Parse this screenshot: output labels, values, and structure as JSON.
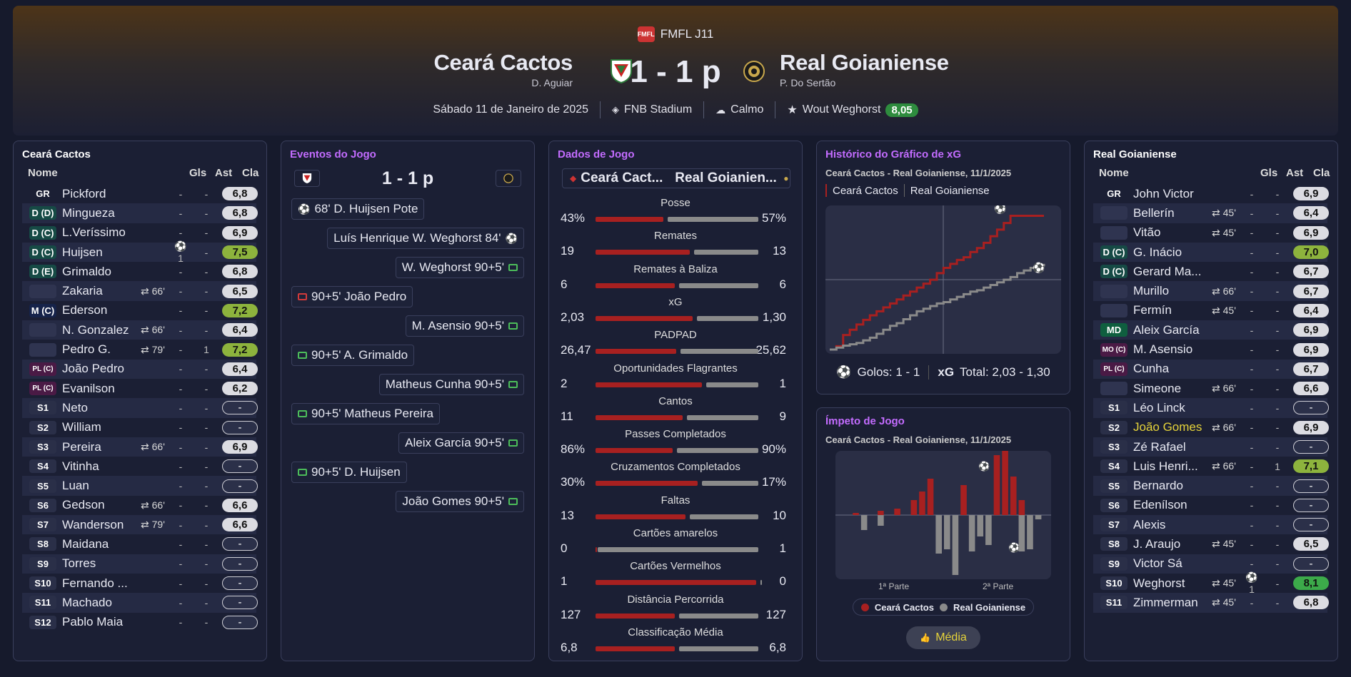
{
  "header": {
    "competition": "FMFL J11",
    "competition_logo": "FMFL",
    "home_team": "Ceará Cactos",
    "home_coach": "D. Aguiar",
    "away_team": "Real Goianiense",
    "away_coach": "P. Do Sertão",
    "score": "1 - 1 p",
    "date": "Sábado 11 de Janeiro de 2025",
    "stadium": "FNB Stadium",
    "weather": "Calmo",
    "star_player": "Wout Weghorst",
    "star_rating": "8,05"
  },
  "colors": {
    "home": "#a82020",
    "away": "#8a8a8a",
    "accent": "#c36cff",
    "green": "#2e8c3e"
  },
  "home_panel": {
    "title": "Ceará Cactos",
    "headers": {
      "name": "Nome",
      "gls": "Gls",
      "ast": "Ast",
      "cla": "Cla"
    },
    "players": [
      {
        "pos": "GR",
        "type": "gr",
        "name": "Pickford",
        "sub": "",
        "gls": "-",
        "ast": "-",
        "rating": "6,8",
        "rt": "w"
      },
      {
        "pos": "D (D)",
        "type": "d",
        "name": "Mingueza",
        "sub": "",
        "gls": "-",
        "ast": "-",
        "rating": "6,8",
        "rt": "w"
      },
      {
        "pos": "D (C)",
        "type": "d",
        "name": "L.Veríssimo",
        "sub": "",
        "gls": "-",
        "ast": "-",
        "rating": "6,9",
        "rt": "w"
      },
      {
        "pos": "D (C)",
        "type": "d",
        "name": "Huijsen",
        "sub": "",
        "gls": "⚽1",
        "ast": "-",
        "rating": "7,5",
        "rt": "lg"
      },
      {
        "pos": "D (E)",
        "type": "d",
        "name": "Grimaldo",
        "sub": "",
        "gls": "-",
        "ast": "-",
        "rating": "6,8",
        "rt": "w"
      },
      {
        "pos": "",
        "type": "blank",
        "name": "Zakaria",
        "sub": "⇄ 66'",
        "gls": "-",
        "ast": "-",
        "rating": "6,5",
        "rt": "w"
      },
      {
        "pos": "M (C)",
        "type": "m",
        "name": "Ederson",
        "sub": "",
        "gls": "-",
        "ast": "-",
        "rating": "7,2",
        "rt": "lg"
      },
      {
        "pos": "",
        "type": "blank",
        "name": "N. Gonzalez",
        "sub": "⇄ 66'",
        "gls": "-",
        "ast": "-",
        "rating": "6,4",
        "rt": "w"
      },
      {
        "pos": "",
        "type": "blank",
        "name": "Pedro G.",
        "sub": "⇄ 79'",
        "gls": "-",
        "ast": "1",
        "rating": "7,2",
        "rt": "lg"
      },
      {
        "pos": "PL (C)",
        "type": "pl",
        "name": "João Pedro",
        "sub": "",
        "gls": "-",
        "ast": "-",
        "rating": "6,4",
        "rt": "w"
      },
      {
        "pos": "PL (C)",
        "type": "pl",
        "name": "Evanilson",
        "sub": "",
        "gls": "-",
        "ast": "-",
        "rating": "6,2",
        "rt": "w"
      },
      {
        "pos": "S1",
        "type": "s",
        "name": "Neto",
        "sub": "",
        "gls": "-",
        "ast": "-",
        "rating": "-",
        "rt": "none"
      },
      {
        "pos": "S2",
        "type": "s",
        "name": "William",
        "sub": "",
        "gls": "-",
        "ast": "-",
        "rating": "-",
        "rt": "none"
      },
      {
        "pos": "S3",
        "type": "s",
        "name": "Pereira",
        "sub": "⇄ 66'",
        "gls": "-",
        "ast": "-",
        "rating": "6,9",
        "rt": "w"
      },
      {
        "pos": "S4",
        "type": "s",
        "name": "Vitinha",
        "sub": "",
        "gls": "-",
        "ast": "-",
        "rating": "-",
        "rt": "none"
      },
      {
        "pos": "S5",
        "type": "s",
        "name": "Luan",
        "sub": "",
        "gls": "-",
        "ast": "-",
        "rating": "-",
        "rt": "none"
      },
      {
        "pos": "S6",
        "type": "s",
        "name": "Gedson",
        "sub": "⇄ 66'",
        "gls": "-",
        "ast": "-",
        "rating": "6,6",
        "rt": "w"
      },
      {
        "pos": "S7",
        "type": "s",
        "name": "Wanderson",
        "sub": "⇄ 79'",
        "gls": "-",
        "ast": "-",
        "rating": "6,6",
        "rt": "w"
      },
      {
        "pos": "S8",
        "type": "s",
        "name": "Maidana",
        "sub": "",
        "gls": "-",
        "ast": "-",
        "rating": "-",
        "rt": "none"
      },
      {
        "pos": "S9",
        "type": "s",
        "name": "Torres",
        "sub": "",
        "gls": "-",
        "ast": "-",
        "rating": "-",
        "rt": "none"
      },
      {
        "pos": "S10",
        "type": "s",
        "name": "Fernando ...",
        "sub": "",
        "gls": "-",
        "ast": "-",
        "rating": "-",
        "rt": "none"
      },
      {
        "pos": "S11",
        "type": "s",
        "name": "Machado",
        "sub": "",
        "gls": "-",
        "ast": "-",
        "rating": "-",
        "rt": "none"
      },
      {
        "pos": "S12",
        "type": "s",
        "name": "Pablo Maia",
        "sub": "",
        "gls": "-",
        "ast": "-",
        "rating": "-",
        "rt": "none"
      }
    ]
  },
  "away_panel": {
    "title": "Real Goianiense",
    "headers": {
      "name": "Nome",
      "gls": "Gls",
      "ast": "Ast",
      "cla": "Cla"
    },
    "players": [
      {
        "pos": "GR",
        "type": "gr",
        "name": "John Victor",
        "sub": "",
        "gls": "-",
        "ast": "-",
        "rating": "6,9",
        "rt": "w"
      },
      {
        "pos": "",
        "type": "blank",
        "name": "Bellerín",
        "sub": "⇄ 45'",
        "gls": "-",
        "ast": "-",
        "rating": "6,4",
        "rt": "w"
      },
      {
        "pos": "",
        "type": "blank",
        "name": "Vitão",
        "sub": "⇄ 45'",
        "gls": "-",
        "ast": "-",
        "rating": "6,9",
        "rt": "w"
      },
      {
        "pos": "D (C)",
        "type": "d",
        "name": "G. Inácio",
        "sub": "",
        "gls": "-",
        "ast": "-",
        "rating": "7,0",
        "rt": "lg"
      },
      {
        "pos": "D (C)",
        "type": "d",
        "name": "Gerard Ma...",
        "sub": "",
        "gls": "-",
        "ast": "-",
        "rating": "6,7",
        "rt": "w"
      },
      {
        "pos": "",
        "type": "blank",
        "name": "Murillo",
        "sub": "⇄ 66'",
        "gls": "-",
        "ast": "-",
        "rating": "6,7",
        "rt": "w"
      },
      {
        "pos": "",
        "type": "blank",
        "name": "Fermín",
        "sub": "⇄ 45'",
        "gls": "-",
        "ast": "-",
        "rating": "6,4",
        "rt": "w"
      },
      {
        "pos": "MD",
        "type": "md",
        "name": "Aleix García",
        "sub": "",
        "gls": "-",
        "ast": "-",
        "rating": "6,9",
        "rt": "w"
      },
      {
        "pos": "MO (C)",
        "type": "pl",
        "name": "M. Asensio",
        "sub": "",
        "gls": "-",
        "ast": "-",
        "rating": "6,9",
        "rt": "w"
      },
      {
        "pos": "PL (C)",
        "type": "pl",
        "name": "Cunha",
        "sub": "",
        "gls": "-",
        "ast": "-",
        "rating": "6,7",
        "rt": "w"
      },
      {
        "pos": "",
        "type": "blank",
        "name": "Simeone",
        "sub": "⇄ 66'",
        "gls": "-",
        "ast": "-",
        "rating": "6,6",
        "rt": "w"
      },
      {
        "pos": "S1",
        "type": "s",
        "name": "Léo Linck",
        "sub": "",
        "gls": "-",
        "ast": "-",
        "rating": "-",
        "rt": "none"
      },
      {
        "pos": "S2",
        "type": "s",
        "name": "João Gomes",
        "sub": "⇄ 66'",
        "gls": "-",
        "ast": "-",
        "rating": "6,9",
        "rt": "w",
        "highlight": true
      },
      {
        "pos": "S3",
        "type": "s",
        "name": "Zé Rafael",
        "sub": "",
        "gls": "-",
        "ast": "-",
        "rating": "-",
        "rt": "none"
      },
      {
        "pos": "S4",
        "type": "s",
        "name": "Luis Henri...",
        "sub": "⇄ 66'",
        "gls": "-",
        "ast": "1",
        "rating": "7,1",
        "rt": "lg"
      },
      {
        "pos": "S5",
        "type": "s",
        "name": "Bernardo",
        "sub": "",
        "gls": "-",
        "ast": "-",
        "rating": "-",
        "rt": "none"
      },
      {
        "pos": "S6",
        "type": "s",
        "name": "Edenílson",
        "sub": "",
        "gls": "-",
        "ast": "-",
        "rating": "-",
        "rt": "none"
      },
      {
        "pos": "S7",
        "type": "s",
        "name": "Alexis",
        "sub": "",
        "gls": "-",
        "ast": "-",
        "rating": "-",
        "rt": "none"
      },
      {
        "pos": "S8",
        "type": "s",
        "name": "J. Araujo",
        "sub": "⇄ 45'",
        "gls": "-",
        "ast": "-",
        "rating": "6,5",
        "rt": "w"
      },
      {
        "pos": "S9",
        "type": "s",
        "name": "Victor Sá",
        "sub": "",
        "gls": "-",
        "ast": "-",
        "rating": "-",
        "rt": "none"
      },
      {
        "pos": "S10",
        "type": "s",
        "name": "Weghorst",
        "sub": "⇄ 45'",
        "gls": "⚽1",
        "ast": "-",
        "rating": "8,1",
        "rt": "g"
      },
      {
        "pos": "S11",
        "type": "s",
        "name": "Zimmerman",
        "sub": "⇄ 45'",
        "gls": "-",
        "ast": "-",
        "rating": "6,8",
        "rt": "w"
      }
    ]
  },
  "events": {
    "title": "Eventos do Jogo",
    "score": "1 - 1 p",
    "items": [
      {
        "side": "home",
        "icon": "goal",
        "text": "68'  D. Huijsen Pote"
      },
      {
        "side": "away",
        "icon": "goal",
        "text": "Luís Henrique  W. Weghorst  84'"
      },
      {
        "side": "away",
        "icon": "pen-ok",
        "text": "W. Weghorst  90+5'"
      },
      {
        "side": "home",
        "icon": "pen-miss",
        "text": "90+5'  João Pedro"
      },
      {
        "side": "away",
        "icon": "pen-ok",
        "text": "M. Asensio  90+5'"
      },
      {
        "side": "home",
        "icon": "pen-ok",
        "text": "90+5'  A. Grimaldo"
      },
      {
        "side": "away",
        "icon": "pen-ok",
        "text": "Matheus Cunha  90+5'"
      },
      {
        "side": "home",
        "icon": "pen-ok",
        "text": "90+5'  Matheus Pereira"
      },
      {
        "side": "away",
        "icon": "pen-ok",
        "text": "Aleix García  90+5'"
      },
      {
        "side": "home",
        "icon": "pen-ok",
        "text": "90+5'  D. Huijsen"
      },
      {
        "side": "away",
        "icon": "pen-ok",
        "text": "João Gomes  90+5'"
      }
    ]
  },
  "stats": {
    "title": "Dados de Jogo",
    "home_tab": "Ceará Cact...",
    "away_tab": "Real Goianien...",
    "rows": [
      {
        "label": "Posse",
        "home": "43%",
        "away": "57%",
        "h": 43,
        "a": 57
      },
      {
        "label": "Remates",
        "home": "19",
        "away": "13",
        "h": 19,
        "a": 13
      },
      {
        "label": "Remates à Baliza",
        "home": "6",
        "away": "6",
        "h": 6,
        "a": 6
      },
      {
        "label": "xG",
        "home": "2,03",
        "away": "1,30",
        "h": 2.03,
        "a": 1.3
      },
      {
        "label": "PADPAD",
        "home": "26,47",
        "away": "25,62",
        "h": 26.47,
        "a": 25.62
      },
      {
        "label": "Oportunidades Flagrantes",
        "home": "2",
        "away": "1",
        "h": 2,
        "a": 1
      },
      {
        "label": "Cantos",
        "home": "11",
        "away": "9",
        "h": 11,
        "a": 9
      },
      {
        "label": "Passes Completados",
        "home": "86%",
        "away": "90%",
        "h": 86,
        "a": 90
      },
      {
        "label": "Cruzamentos Completados",
        "home": "30%",
        "away": "17%",
        "h": 30,
        "a": 17
      },
      {
        "label": "Faltas",
        "home": "13",
        "away": "10",
        "h": 13,
        "a": 10
      },
      {
        "label": "Cartões amarelos",
        "home": "0",
        "away": "1",
        "h": 0,
        "a": 1
      },
      {
        "label": "Cartões Vermelhos",
        "home": "1",
        "away": "0",
        "h": 1,
        "a": 0
      },
      {
        "label": "Distância Percorrida",
        "home": "127",
        "away": "127",
        "h": 127,
        "a": 127
      },
      {
        "label": "Classificação Média",
        "home": "6,8",
        "away": "6,8",
        "h": 6.8,
        "a": 6.8
      }
    ]
  },
  "xg": {
    "title": "Histórico do Gráfico de xG",
    "subtitle": "Ceará Cactos - Real Goianiense, 11/1/2025",
    "legend_home": "Ceará Cactos",
    "legend_away": "Real Goianiense",
    "goals_label": "Golos: 1 - 1",
    "xg_label": "xG",
    "xg_total": "Total: 2,03 - 1,30"
  },
  "momentum": {
    "title": "Ímpeto de Jogo",
    "subtitle": "Ceará Cactos - Real Goianiense, 11/1/2025",
    "half1": "1ª Parte",
    "half2": "2ª Parte",
    "legend_home": "Ceará Cactos",
    "legend_away": "Real Goianiense",
    "button": "Média"
  },
  "chart_data": [
    {
      "type": "line",
      "title": "Histórico do Gráfico de xG",
      "series": [
        {
          "name": "Ceará Cactos",
          "x": [
            0,
            3,
            6,
            9,
            12,
            15,
            18,
            21,
            24,
            27,
            30,
            33,
            36,
            39,
            42,
            45,
            48,
            51,
            54,
            57,
            60,
            63,
            66,
            69,
            72,
            75,
            78,
            81,
            84,
            87,
            90,
            93,
            96
          ],
          "values": [
            0.0,
            0.05,
            0.22,
            0.3,
            0.38,
            0.45,
            0.52,
            0.58,
            0.64,
            0.7,
            0.76,
            0.82,
            0.88,
            0.94,
            1.0,
            1.06,
            1.16,
            1.24,
            1.3,
            1.36,
            1.4,
            1.48,
            1.54,
            1.62,
            1.72,
            1.82,
            1.92,
            2.03,
            2.03,
            2.03,
            2.03,
            2.03,
            2.03
          ]
        },
        {
          "name": "Real Goianiense",
          "x": [
            0,
            3,
            6,
            9,
            12,
            15,
            18,
            21,
            24,
            27,
            30,
            33,
            36,
            39,
            42,
            45,
            48,
            51,
            54,
            57,
            60,
            63,
            66,
            69,
            72,
            75,
            78,
            81,
            84,
            87,
            90,
            93,
            96
          ],
          "values": [
            0.0,
            0.03,
            0.06,
            0.08,
            0.1,
            0.14,
            0.18,
            0.24,
            0.3,
            0.36,
            0.4,
            0.46,
            0.52,
            0.58,
            0.62,
            0.66,
            0.7,
            0.72,
            0.76,
            0.8,
            0.84,
            0.88,
            0.9,
            0.94,
            0.98,
            1.02,
            1.06,
            1.1,
            1.16,
            1.2,
            1.24,
            1.28,
            1.3
          ]
        }
      ]
    },
    {
      "type": "bar",
      "title": "Ímpeto de Jogo",
      "series": [
        {
          "name": "Ceará Cactos",
          "values": [
            0,
            0.05,
            0,
            0,
            0.1,
            0,
            0.15,
            0,
            0.35,
            0.55,
            0.85,
            0,
            0,
            0,
            0.7,
            0,
            0,
            0,
            1.4,
            1.5,
            0.9,
            0.35,
            0,
            0
          ]
        },
        {
          "name": "Real Goianiense",
          "values": [
            0,
            0,
            -0.35,
            0,
            -0.25,
            0,
            0,
            0,
            0,
            0,
            0,
            -0.9,
            -0.8,
            -1.4,
            0,
            -0.85,
            -0.5,
            -0.7,
            0,
            0,
            0,
            -0.85,
            -0.8,
            -0.1
          ]
        }
      ]
    }
  ]
}
